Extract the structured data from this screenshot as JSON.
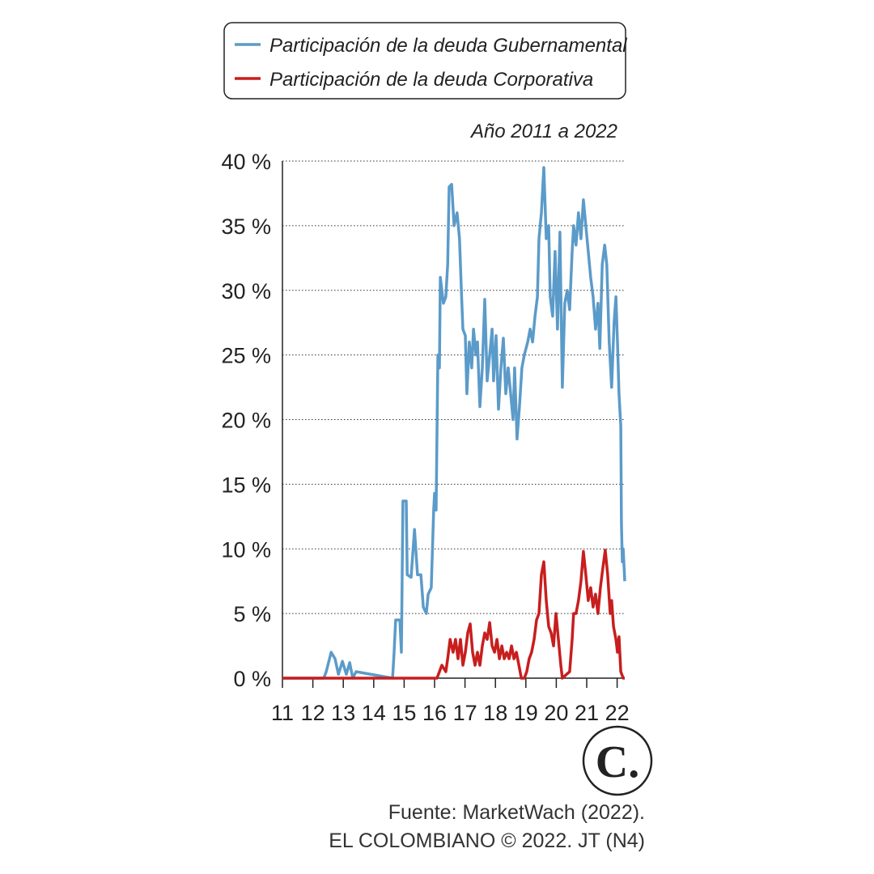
{
  "chart_data": {
    "type": "line",
    "subtitle": "Año 2011 a 2022",
    "logo": "C.",
    "source": [
      "Fuente: MarketWach (2022).",
      "EL COLOMBIANO © 2022. JT (N4)"
    ],
    "xlim": [
      11,
      22.25
    ],
    "xticks": [
      11,
      12,
      13,
      14,
      15,
      16,
      17,
      18,
      19,
      20,
      21,
      22
    ],
    "ylim": [
      0,
      40
    ],
    "yticks": [
      {
        "value": 0,
        "label": "0 %"
      },
      {
        "value": 5,
        "label": "5 %"
      },
      {
        "value": 10,
        "label": "10 %"
      },
      {
        "value": 15,
        "label": "15 %"
      },
      {
        "value": 20,
        "label": "20 %"
      },
      {
        "value": 25,
        "label": "25 %"
      },
      {
        "value": 30,
        "label": "30 %"
      },
      {
        "value": 35,
        "label": "35 %"
      },
      {
        "value": 40,
        "label": "40 %"
      }
    ],
    "grid": true,
    "series": [
      {
        "name": "Participación de la deuda Gubernamental",
        "color": "#5b9bc9",
        "x": [
          11.0,
          12.36,
          12.44,
          12.6,
          12.73,
          12.84,
          12.97,
          13.1,
          13.21,
          13.31,
          13.42,
          14.62,
          14.67,
          14.72,
          14.86,
          14.91,
          14.96,
          15.07,
          15.1,
          15.23,
          15.34,
          15.44,
          15.55,
          15.63,
          15.73,
          15.79,
          15.89,
          15.97,
          16.0,
          16.05,
          16.11,
          16.16,
          16.19,
          16.29,
          16.37,
          16.43,
          16.48,
          16.56,
          16.64,
          16.74,
          16.82,
          16.88,
          16.93,
          17.01,
          17.06,
          17.14,
          17.22,
          17.28,
          17.36,
          17.41,
          17.49,
          17.57,
          17.65,
          17.73,
          17.81,
          17.89,
          17.94,
          18.02,
          18.1,
          18.18,
          18.26,
          18.34,
          18.42,
          18.5,
          18.58,
          18.63,
          18.71,
          18.79,
          18.87,
          18.95,
          19.06,
          19.14,
          19.22,
          19.3,
          19.38,
          19.43,
          19.51,
          19.59,
          19.67,
          19.75,
          19.8,
          19.88,
          19.96,
          20.04,
          20.12,
          20.2,
          20.28,
          20.36,
          20.44,
          20.52,
          20.57,
          20.65,
          20.73,
          20.81,
          20.89,
          20.97,
          21.05,
          21.13,
          21.21,
          21.29,
          21.37,
          21.43,
          21.51,
          21.59,
          21.66,
          21.74,
          21.82,
          21.9,
          21.96,
          22.01,
          22.06,
          22.12,
          22.14,
          22.17,
          22.2,
          22.25
        ],
        "values": [
          0,
          0,
          0.5,
          2,
          1.5,
          0.3,
          1.3,
          0.3,
          1.2,
          0,
          0.5,
          0,
          2,
          4.5,
          4.5,
          2,
          13.7,
          13.7,
          8,
          7.8,
          11.5,
          8,
          8,
          5.5,
          5,
          6.5,
          7,
          13,
          14.3,
          13,
          25,
          24,
          31,
          29,
          29.5,
          32,
          38,
          38.2,
          35,
          36,
          34,
          30,
          27,
          26.5,
          22,
          26,
          24,
          27,
          25,
          26,
          21,
          24,
          29.3,
          23,
          25,
          27,
          23,
          26.5,
          20.8,
          24,
          26.3,
          22,
          24,
          22,
          20,
          24,
          18.5,
          21,
          24,
          25,
          26,
          27,
          26,
          28,
          29.5,
          34,
          36,
          39.5,
          34,
          35,
          29.5,
          28,
          33,
          27,
          34.5,
          22.5,
          29,
          30,
          28.5,
          33,
          35,
          33.5,
          36,
          34,
          37,
          35,
          33,
          31,
          29.5,
          27,
          29,
          25.5,
          32,
          33.5,
          32,
          26,
          22.5,
          27.5,
          29.5,
          26,
          22,
          19.5,
          12,
          9,
          10,
          7.5
        ]
      },
      {
        "name": "Participación de la deuda Corporativa",
        "color": "#c81e1e",
        "x": [
          11.0,
          16.08,
          16.16,
          16.24,
          16.37,
          16.43,
          16.51,
          16.61,
          16.69,
          16.77,
          16.85,
          16.93,
          17.01,
          17.09,
          17.17,
          17.25,
          17.33,
          17.41,
          17.49,
          17.57,
          17.65,
          17.73,
          17.81,
          17.89,
          17.97,
          18.05,
          18.13,
          18.21,
          18.29,
          18.37,
          18.45,
          18.53,
          18.61,
          18.69,
          18.77,
          18.85,
          18.95,
          19.03,
          19.11,
          19.19,
          19.27,
          19.35,
          19.43,
          19.51,
          19.59,
          19.67,
          19.75,
          19.83,
          19.91,
          19.99,
          20.07,
          20.15,
          20.2,
          20.34,
          20.44,
          20.52,
          20.57,
          20.65,
          20.73,
          20.81,
          20.89,
          20.97,
          21.05,
          21.13,
          21.21,
          21.29,
          21.37,
          21.45,
          21.53,
          21.61,
          21.69,
          21.77,
          21.82,
          21.88,
          21.96,
          22.01,
          22.06,
          22.12,
          22.2,
          22.25
        ],
        "values": [
          0,
          0,
          0.5,
          1,
          0.5,
          1.5,
          3,
          2,
          3,
          1.5,
          3,
          1,
          2,
          3.5,
          4.2,
          2,
          1,
          2,
          1,
          2.5,
          3.5,
          3,
          4.3,
          2.5,
          2,
          3,
          1.5,
          2.5,
          1.5,
          2,
          1.5,
          2.5,
          1.5,
          2,
          1,
          0,
          0,
          0.5,
          1.5,
          2,
          3,
          4.5,
          5,
          8,
          9,
          6,
          4,
          3.5,
          2.5,
          5,
          3,
          1,
          0,
          0.3,
          0.5,
          3,
          5,
          5,
          6,
          7.5,
          9.8,
          8,
          6,
          7,
          5.5,
          6.5,
          5,
          7,
          8.5,
          9.9,
          8,
          5,
          6,
          4,
          3,
          2,
          3.2,
          0.5,
          0,
          0
        ]
      }
    ]
  }
}
